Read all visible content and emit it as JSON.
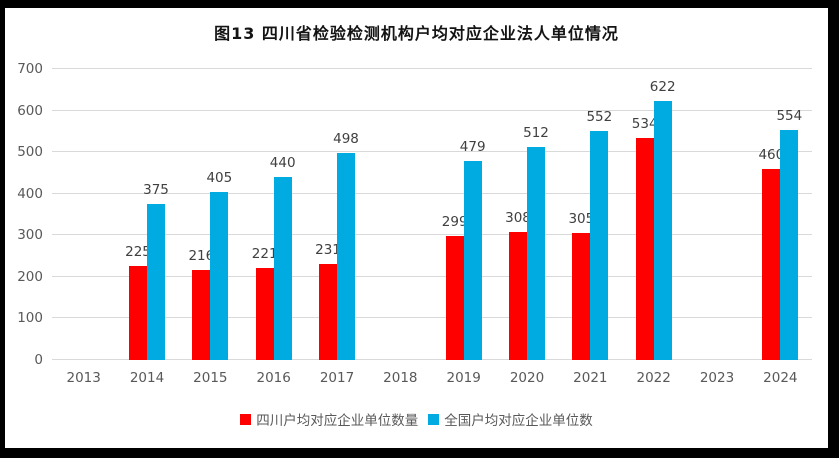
{
  "title": "图13 四川省检验检测机构户均对应企业法人单位情况",
  "chart_data": {
    "type": "bar",
    "title": "图13 四川省检验检测机构户均对应企业法人单位情况",
    "categories": [
      "2013",
      "2014",
      "2015",
      "2016",
      "2017",
      "2018",
      "2019",
      "2020",
      "2021",
      "2022",
      "2023",
      "2024"
    ],
    "series": [
      {
        "name": "四川户均对应企业单位数量",
        "color": "#FF0000",
        "values": [
          null,
          225,
          216,
          221,
          231,
          null,
          299,
          308,
          305,
          534,
          null,
          460
        ]
      },
      {
        "name": "全国户均对应企业单位数",
        "color": "#00ABE2",
        "values": [
          null,
          375,
          405,
          440,
          498,
          null,
          479,
          512,
          552,
          622,
          null,
          554
        ]
      }
    ],
    "xlabel": "",
    "ylabel": "",
    "ylim": [
      0,
      700
    ],
    "yticks": [
      0,
      100,
      200,
      300,
      400,
      500,
      600,
      700
    ],
    "grid": true,
    "legend_position": "bottom",
    "data_labels": true
  },
  "colors": {
    "series_sichuan": "#FF0000",
    "series_national": "#00ABE2",
    "gridline": "#D9D9D9",
    "axis_text": "#595959",
    "data_label_text": "#404040",
    "frame": "#000000",
    "background": "#FFFFFF"
  }
}
